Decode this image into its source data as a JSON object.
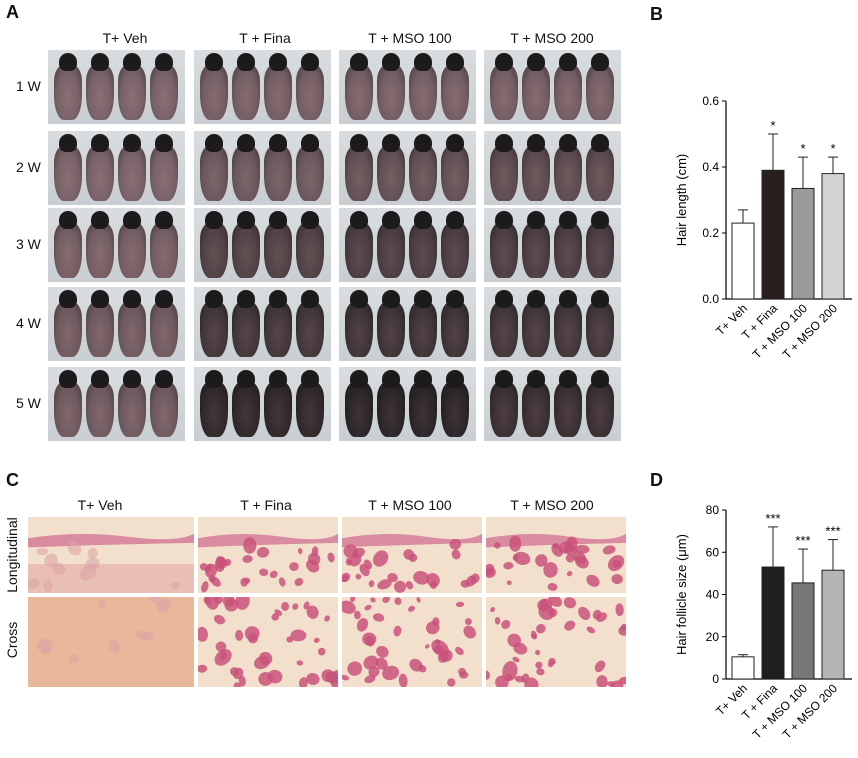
{
  "panels": {
    "a": "A",
    "b": "B",
    "c": "C",
    "d": "D"
  },
  "panel_a": {
    "columns": [
      "T+ Veh",
      "T + Fina",
      "T + MSO 100",
      "T + MSO 200"
    ],
    "rows": [
      "1 W",
      "2 W",
      "3 W",
      "4 W",
      "5 W"
    ],
    "darkness": [
      [
        0.1,
        0.15,
        0.15,
        0.15
      ],
      [
        0.1,
        0.25,
        0.35,
        0.4
      ],
      [
        0.15,
        0.55,
        0.6,
        0.6
      ],
      [
        0.2,
        0.7,
        0.75,
        0.7
      ],
      [
        0.2,
        0.9,
        0.95,
        0.8
      ]
    ]
  },
  "panel_c": {
    "columns": [
      "T+ Veh",
      "T + Fina",
      "T + MSO 100",
      "T + MSO 200"
    ],
    "rows": [
      "Longitudinal",
      "Cross"
    ]
  },
  "chart_data": [
    {
      "type": "bar",
      "panel": "B",
      "categories": [
        "T+ Veh",
        "T + Fina",
        "T + MSO 100",
        "T + MSO 200"
      ],
      "values": [
        0.23,
        0.39,
        0.335,
        0.38
      ],
      "errors": [
        0.04,
        0.11,
        0.095,
        0.05
      ],
      "significance": [
        "",
        "*",
        "*",
        "*"
      ],
      "colors": [
        "#ffffff",
        "#2a1f1f",
        "#9a9a9a",
        "#d4d4d4"
      ],
      "ylabel": "Hair length (cm)",
      "ylim": [
        0,
        0.6
      ],
      "yticks": [
        "0.0",
        "0.2",
        "0.4",
        "0.6"
      ],
      "ytick_values": [
        0,
        0.2,
        0.4,
        0.6
      ]
    },
    {
      "type": "bar",
      "panel": "D",
      "categories": [
        "T+ Veh",
        "T + Fina",
        "T + MSO 100",
        "T + MSO 200"
      ],
      "values": [
        10.5,
        53,
        45.5,
        51.5
      ],
      "errors": [
        1.0,
        19,
        16,
        14.5
      ],
      "significance": [
        "",
        "***",
        "***",
        "***"
      ],
      "colors": [
        "#ffffff",
        "#1e1e1e",
        "#777777",
        "#b4b4b4"
      ],
      "ylabel": "Hair follicle size (μm)",
      "ylim": [
        0,
        80
      ],
      "yticks": [
        "0",
        "20",
        "40",
        "60",
        "80"
      ],
      "ytick_values": [
        0,
        20,
        40,
        60,
        80
      ]
    }
  ]
}
